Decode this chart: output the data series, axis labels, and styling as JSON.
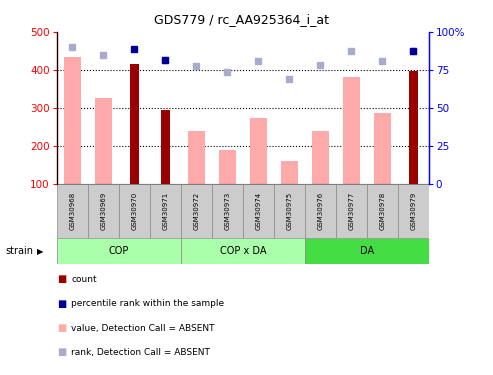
{
  "title": "GDS779 / rc_AA925364_i_at",
  "samples": [
    "GSM30968",
    "GSM30969",
    "GSM30970",
    "GSM30971",
    "GSM30972",
    "GSM30973",
    "GSM30974",
    "GSM30975",
    "GSM30976",
    "GSM30977",
    "GSM30978",
    "GSM30979"
  ],
  "count_values": [
    null,
    null,
    415,
    295,
    null,
    null,
    null,
    null,
    null,
    null,
    null,
    398
  ],
  "value_absent": [
    435,
    325,
    null,
    null,
    240,
    190,
    272,
    160,
    238,
    380,
    287,
    null
  ],
  "rank_absent": [
    460,
    440,
    null,
    425,
    410,
    395,
    422,
    375,
    412,
    450,
    422,
    450
  ],
  "percentile_dark": [
    null,
    null,
    455,
    425,
    null,
    null,
    null,
    null,
    null,
    null,
    null,
    450
  ],
  "group_data": [
    [
      0,
      3,
      "COP",
      "#AAFFAA"
    ],
    [
      4,
      7,
      "COP x DA",
      "#AAFFAA"
    ],
    [
      8,
      11,
      "DA",
      "#44DD44"
    ]
  ],
  "ylim": [
    100,
    500
  ],
  "yticks": [
    100,
    200,
    300,
    400,
    500
  ],
  "right_yticks": [
    0,
    25,
    50,
    75,
    100
  ],
  "bar_color_dark_red": "#990000",
  "bar_color_pink": "#FFAAAA",
  "dot_color_dark_blue": "#000099",
  "dot_color_light_blue": "#AAAACC",
  "group_bg": "#CCCCCC",
  "legend_items": [
    [
      "#990000",
      "count"
    ],
    [
      "#000099",
      "percentile rank within the sample"
    ],
    [
      "#FFAAAA",
      "value, Detection Call = ABSENT"
    ],
    [
      "#AAAACC",
      "rank, Detection Call = ABSENT"
    ]
  ]
}
